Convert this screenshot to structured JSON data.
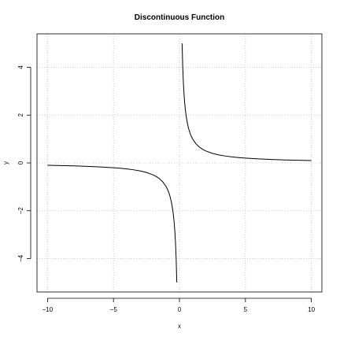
{
  "chart_data": {
    "type": "line",
    "title": "Discontinuous Function",
    "xlabel": "x",
    "ylabel": "y",
    "xlim": [
      -10.8,
      10.8
    ],
    "ylim": [
      -5.4,
      5.4
    ],
    "xticks": [
      -10,
      -5,
      0,
      5,
      10
    ],
    "yticks": [
      -4,
      -2,
      0,
      2,
      4
    ],
    "xtick_labels": [
      "−10",
      "−5",
      "0",
      "5",
      "10"
    ],
    "ytick_labels": [
      "−4",
      "−2",
      "0",
      "2",
      "4"
    ],
    "grid": true,
    "line_color": "#000000",
    "grid_color": "#bfbfbf",
    "series": [
      {
        "segments": [
          {
            "x": [
              -10,
              -9,
              -8,
              -7,
              -6,
              -5,
              -4.5,
              -4,
              -3.5,
              -3,
              -2.5,
              -2,
              -1.75,
              -1.5,
              -1.25,
              -1,
              -0.9,
              -0.8,
              -0.7,
              -0.6,
              -0.5,
              -0.45,
              -0.4,
              -0.35,
              -0.3,
              -0.25,
              -0.2
            ],
            "y": [
              -0.1,
              -0.111,
              -0.125,
              -0.143,
              -0.167,
              -0.2,
              -0.222,
              -0.25,
              -0.286,
              -0.333,
              -0.4,
              -0.5,
              -0.571,
              -0.667,
              -0.8,
              -1,
              -1.111,
              -1.25,
              -1.429,
              -1.667,
              -2,
              -2.222,
              -2.5,
              -2.857,
              -3.333,
              -4,
              -5
            ]
          },
          {
            "x": [
              0.2,
              0.25,
              0.3,
              0.35,
              0.4,
              0.45,
              0.5,
              0.6,
              0.7,
              0.8,
              0.9,
              1,
              1.25,
              1.5,
              1.75,
              2,
              2.5,
              3,
              3.5,
              4,
              4.5,
              5,
              6,
              7,
              8,
              9,
              10
            ],
            "y": [
              5,
              4,
              3.333,
              2.857,
              2.5,
              2.222,
              2,
              1.667,
              1.429,
              1.25,
              1.111,
              1,
              0.8,
              0.667,
              0.571,
              0.5,
              0.4,
              0.333,
              0.286,
              0.25,
              0.222,
              0.2,
              0.167,
              0.143,
              0.125,
              0.111,
              0.1
            ]
          }
        ]
      }
    ]
  }
}
